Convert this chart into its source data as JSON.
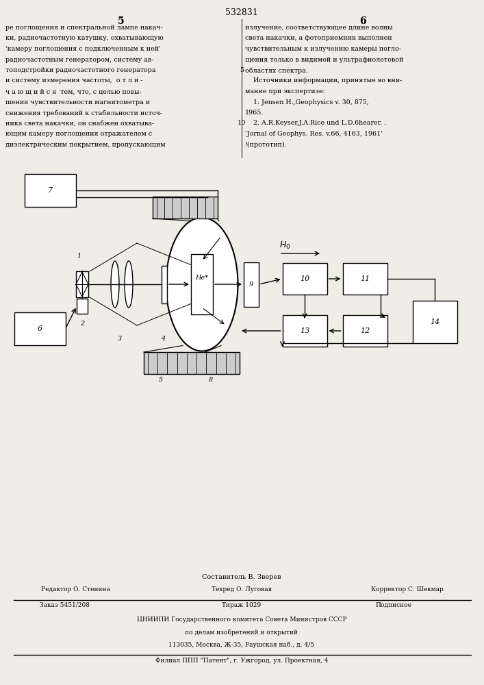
{
  "page_number": "532831",
  "col_left": "5",
  "col_right": "6",
  "text_left": [
    "ре поглощения и спектральной лампе накач-",
    "ки, радиочастотную катушку, охватывающую",
    "'камеру поглощения с подключенным к ней'",
    "радиочастотным генератором, систему ав-",
    "топодстройки радиочастотного генератора",
    "и систему измерения частоты,  о т л и -",
    "ч а ю щ и й с я  тем, что, с целью повы-",
    "шения чувствительности магнитометра и",
    "снижения требований к стабильности источ-",
    "ника света накачки, он снабжен охватыва-",
    "ющим камеру поглощения отражателем с",
    "диэлектрическим покрытием, пропускающим"
  ],
  "text_right": [
    "излучение, соответствующее длине волны",
    "света накачки, а фотоприемник выполнен",
    "чувствительным к излучению камеры погло-",
    "щения только в видимой и ультрафиолетовой",
    "областях спектра.",
    "    Источники информации, принятые во вни-",
    "мание при экспертизе:",
    "    1. Jensen H.,Geophysics v. 30, 875,",
    "1965.",
    "    2. A.R.Keyser,J.A.Rice und L.D.6hearer. .",
    "'Jornal of Geophys. Res. v.66, 4163, 1961'",
    "!(прототип)."
  ],
  "num5_label": "5",
  "num10_label": "10",
  "footer_editor": "Редактор О. Стенина",
  "footer_techred": "Техред О. Луговая",
  "footer_corrector": "Корректор С. Шекмар",
  "footer_composer": "Составитель В. Зверев",
  "footer_order": "Заказ 5451/208",
  "footer_print": "Тираж 1029",
  "footer_sub": "Подписное",
  "footer_org": "ЦНИИПИ Государственного комитета Совета Министров СССР",
  "footer_dept": "по делам изобретений и открытий",
  "footer_addr": "113035, Москва, Ж-35, Раушская наб., д. 4/5",
  "footer_branch": "Филиал ППП \"Патент\", г. Ужгород, ул. Проектная, 4",
  "bg_color": "#f0ede8"
}
